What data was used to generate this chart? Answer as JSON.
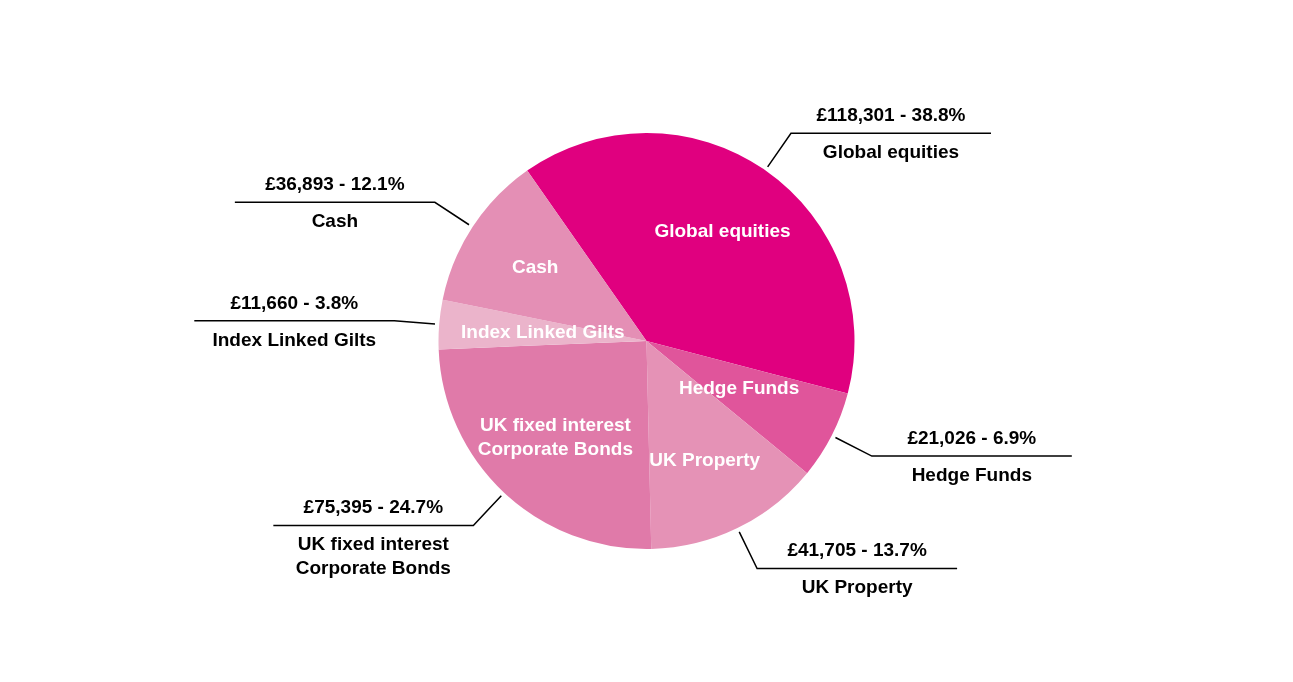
{
  "chart_data": {
    "type": "pie",
    "categories": [
      "Global equities",
      "Hedge Funds",
      "UK Property",
      "UK fixed interest Corporate Bonds",
      "Index Linked Gilts",
      "Cash"
    ],
    "values": [
      118301,
      21026,
      41705,
      75395,
      11660,
      36893
    ],
    "colors": [
      "#e0007f",
      "#e0559b",
      "#e592b6",
      "#e07aa9",
      "#ebb4cb",
      "#e48fb5"
    ],
    "value_labels": [
      "£118,301 - 38.8%",
      "£21,026 - 6.9%",
      "£41,705 - 13.7%",
      "£75,395 - 24.7%",
      "£11,660 - 3.8%",
      "£36,893 - 12.1%"
    ]
  }
}
